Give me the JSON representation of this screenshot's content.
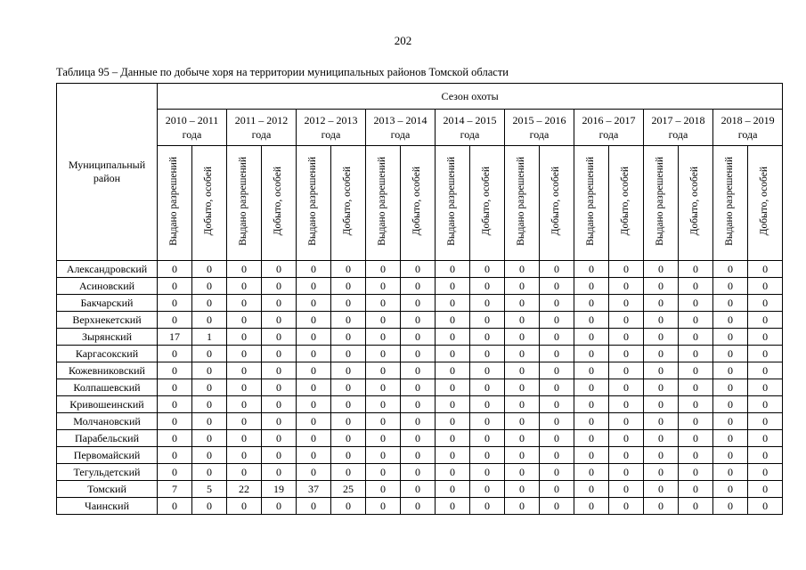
{
  "page": {
    "number": "202",
    "caption": "Таблица 95 – Данные по добыче хоря на территории муниципальных районов Томской области"
  },
  "table": {
    "corner_header": "Муниципальный район",
    "season_group_header": "Сезон охоты",
    "seasons": [
      "2010 – 2011\nгода",
      "2011 – 2012\nгода",
      "2012 – 2013\nгода",
      "2013 – 2014\nгода",
      "2014 – 2015\nгода",
      "2015 – 2016\nгода",
      "2016 – 2017\nгода",
      "2017 – 2018\nгода",
      "2018 – 2019\nгода"
    ],
    "subcolumns": [
      "Выдано разрешений",
      "Добыто, особей"
    ],
    "rows": [
      {
        "district": "Александровский",
        "values": [
          0,
          0,
          0,
          0,
          0,
          0,
          0,
          0,
          0,
          0,
          0,
          0,
          0,
          0,
          0,
          0,
          0,
          0
        ]
      },
      {
        "district": "Асиновский",
        "values": [
          0,
          0,
          0,
          0,
          0,
          0,
          0,
          0,
          0,
          0,
          0,
          0,
          0,
          0,
          0,
          0,
          0,
          0
        ]
      },
      {
        "district": "Бакчарский",
        "values": [
          0,
          0,
          0,
          0,
          0,
          0,
          0,
          0,
          0,
          0,
          0,
          0,
          0,
          0,
          0,
          0,
          0,
          0
        ]
      },
      {
        "district": "Верхнекетский",
        "values": [
          0,
          0,
          0,
          0,
          0,
          0,
          0,
          0,
          0,
          0,
          0,
          0,
          0,
          0,
          0,
          0,
          0,
          0
        ]
      },
      {
        "district": "Зырянский",
        "values": [
          17,
          1,
          0,
          0,
          0,
          0,
          0,
          0,
          0,
          0,
          0,
          0,
          0,
          0,
          0,
          0,
          0,
          0
        ]
      },
      {
        "district": "Каргасокский",
        "values": [
          0,
          0,
          0,
          0,
          0,
          0,
          0,
          0,
          0,
          0,
          0,
          0,
          0,
          0,
          0,
          0,
          0,
          0
        ]
      },
      {
        "district": "Кожевниковский",
        "values": [
          0,
          0,
          0,
          0,
          0,
          0,
          0,
          0,
          0,
          0,
          0,
          0,
          0,
          0,
          0,
          0,
          0,
          0
        ]
      },
      {
        "district": "Колпашевский",
        "values": [
          0,
          0,
          0,
          0,
          0,
          0,
          0,
          0,
          0,
          0,
          0,
          0,
          0,
          0,
          0,
          0,
          0,
          0
        ]
      },
      {
        "district": "Кривошеинский",
        "values": [
          0,
          0,
          0,
          0,
          0,
          0,
          0,
          0,
          0,
          0,
          0,
          0,
          0,
          0,
          0,
          0,
          0,
          0
        ]
      },
      {
        "district": "Молчановский",
        "values": [
          0,
          0,
          0,
          0,
          0,
          0,
          0,
          0,
          0,
          0,
          0,
          0,
          0,
          0,
          0,
          0,
          0,
          0
        ]
      },
      {
        "district": "Парабельский",
        "values": [
          0,
          0,
          0,
          0,
          0,
          0,
          0,
          0,
          0,
          0,
          0,
          0,
          0,
          0,
          0,
          0,
          0,
          0
        ]
      },
      {
        "district": "Первомайский",
        "values": [
          0,
          0,
          0,
          0,
          0,
          0,
          0,
          0,
          0,
          0,
          0,
          0,
          0,
          0,
          0,
          0,
          0,
          0
        ]
      },
      {
        "district": "Тегульдетский",
        "values": [
          0,
          0,
          0,
          0,
          0,
          0,
          0,
          0,
          0,
          0,
          0,
          0,
          0,
          0,
          0,
          0,
          0,
          0
        ]
      },
      {
        "district": "Томский",
        "values": [
          7,
          5,
          22,
          19,
          37,
          25,
          0,
          0,
          0,
          0,
          0,
          0,
          0,
          0,
          0,
          0,
          0,
          0
        ]
      },
      {
        "district": "Чаинский",
        "values": [
          0,
          0,
          0,
          0,
          0,
          0,
          0,
          0,
          0,
          0,
          0,
          0,
          0,
          0,
          0,
          0,
          0,
          0
        ]
      }
    ]
  }
}
